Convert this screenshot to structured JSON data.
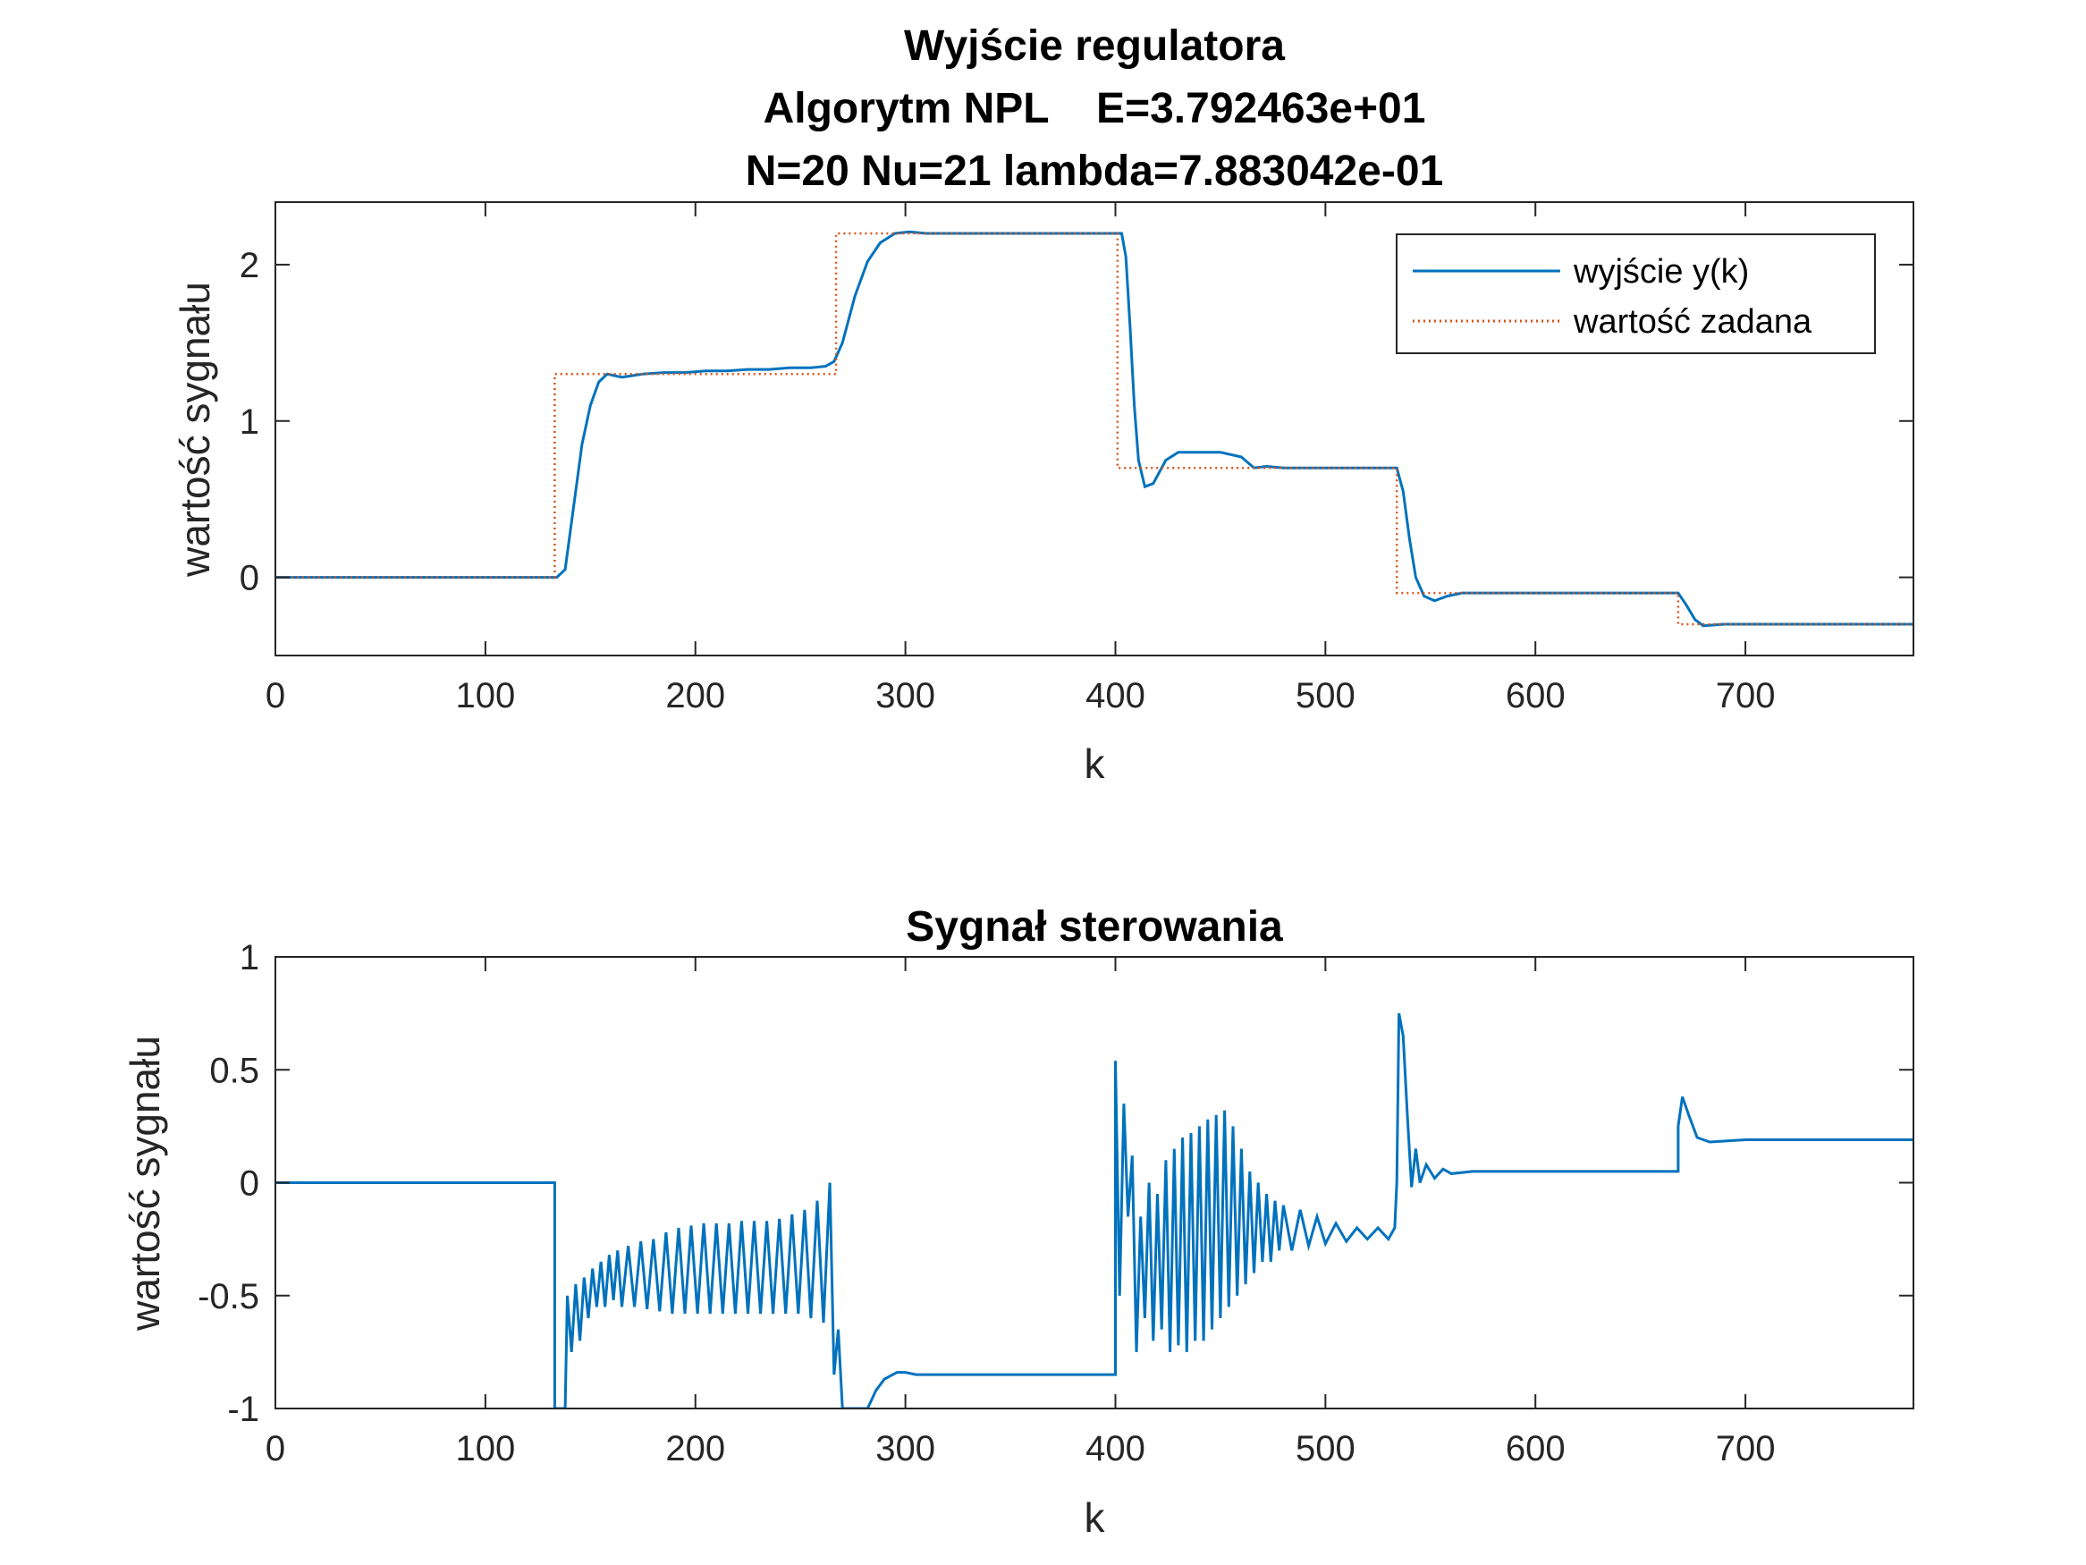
{
  "chart_data": [
    {
      "type": "line",
      "title": [
        "Wyjście regulatora",
        "Algorytm NPL    E=3.792463e+01",
        "N=20  Nu=21  lambda=7.883042e-01"
      ],
      "xlabel": "k",
      "ylabel": "wartość sygnału",
      "xlim": [
        0,
        780
      ],
      "ylim": [
        -0.5,
        2.4
      ],
      "xticks": [
        "0",
        "100",
        "200",
        "300",
        "400",
        "500",
        "600",
        "700"
      ],
      "yticks": [
        "0",
        "1",
        "2"
      ],
      "grid": false,
      "legend_position": "top-right",
      "series": [
        {
          "name": "wyjście y(k)",
          "color": "#0072BD",
          "style": "solid",
          "points": [
            [
              0,
              0
            ],
            [
              134,
              0
            ],
            [
              138,
              0.05
            ],
            [
              142,
              0.45
            ],
            [
              146,
              0.85
            ],
            [
              150,
              1.1
            ],
            [
              154,
              1.25
            ],
            [
              158,
              1.3
            ],
            [
              165,
              1.28
            ],
            [
              175,
              1.3
            ],
            [
              185,
              1.31
            ],
            [
              195,
              1.31
            ],
            [
              205,
              1.32
            ],
            [
              215,
              1.32
            ],
            [
              225,
              1.33
            ],
            [
              235,
              1.33
            ],
            [
              245,
              1.34
            ],
            [
              255,
              1.34
            ],
            [
              262,
              1.35
            ],
            [
              266,
              1.38
            ],
            [
              270,
              1.5
            ],
            [
              276,
              1.8
            ],
            [
              282,
              2.02
            ],
            [
              288,
              2.14
            ],
            [
              295,
              2.2
            ],
            [
              302,
              2.21
            ],
            [
              310,
              2.2
            ],
            [
              330,
              2.2
            ],
            [
              360,
              2.2
            ],
            [
              400,
              2.2
            ],
            [
              403,
              2.2
            ],
            [
              405,
              2.05
            ],
            [
              407,
              1.6
            ],
            [
              409,
              1.1
            ],
            [
              411,
              0.75
            ],
            [
              414,
              0.58
            ],
            [
              418,
              0.6
            ],
            [
              424,
              0.75
            ],
            [
              430,
              0.8
            ],
            [
              440,
              0.8
            ],
            [
              450,
              0.8
            ],
            [
              460,
              0.77
            ],
            [
              466,
              0.7
            ],
            [
              472,
              0.71
            ],
            [
              480,
              0.7
            ],
            [
              500,
              0.7
            ],
            [
              520,
              0.7
            ],
            [
              534,
              0.7
            ],
            [
              537,
              0.55
            ],
            [
              540,
              0.25
            ],
            [
              543,
              0.0
            ],
            [
              547,
              -0.12
            ],
            [
              552,
              -0.15
            ],
            [
              558,
              -0.12
            ],
            [
              565,
              -0.1
            ],
            [
              600,
              -0.1
            ],
            [
              650,
              -0.1
            ],
            [
              668,
              -0.1
            ],
            [
              672,
              -0.18
            ],
            [
              676,
              -0.27
            ],
            [
              680,
              -0.31
            ],
            [
              690,
              -0.3
            ],
            [
              720,
              -0.3
            ],
            [
              780,
              -0.3
            ]
          ]
        },
        {
          "name": "wartość zadana",
          "color": "#D95319",
          "style": "dotted",
          "points": [
            [
              0,
              0
            ],
            [
              133,
              0
            ],
            [
              133,
              1.3
            ],
            [
              267,
              1.3
            ],
            [
              267,
              2.2
            ],
            [
              401,
              2.2
            ],
            [
              401,
              0.7
            ],
            [
              534,
              0.7
            ],
            [
              534,
              -0.1
            ],
            [
              668,
              -0.1
            ],
            [
              668,
              -0.3
            ],
            [
              780,
              -0.3
            ]
          ]
        }
      ]
    },
    {
      "type": "line",
      "title": [
        "Sygnał sterowania"
      ],
      "xlabel": "k",
      "ylabel": "wartość sygnału",
      "xlim": [
        0,
        780
      ],
      "ylim": [
        -1,
        1
      ],
      "xticks": [
        "0",
        "100",
        "200",
        "300",
        "400",
        "500",
        "600",
        "700"
      ],
      "yticks": [
        "-1",
        "-0.5",
        "0",
        "0.5",
        "1"
      ],
      "grid": false,
      "series": [
        {
          "color": "#0072BD",
          "style": "solid",
          "points": [
            [
              0,
              0
            ],
            [
              133,
              0
            ],
            [
              133,
              -1
            ],
            [
              138,
              -1
            ],
            [
              139,
              -0.5
            ],
            [
              141,
              -0.75
            ],
            [
              143,
              -0.45
            ],
            [
              145,
              -0.7
            ],
            [
              147,
              -0.42
            ],
            [
              149,
              -0.6
            ],
            [
              151,
              -0.38
            ],
            [
              153,
              -0.55
            ],
            [
              155,
              -0.35
            ],
            [
              157,
              -0.55
            ],
            [
              159,
              -0.32
            ],
            [
              161,
              -0.52
            ],
            [
              163,
              -0.3
            ],
            [
              165,
              -0.55
            ],
            [
              168,
              -0.28
            ],
            [
              171,
              -0.55
            ],
            [
              174,
              -0.26
            ],
            [
              177,
              -0.56
            ],
            [
              180,
              -0.25
            ],
            [
              183,
              -0.57
            ],
            [
              186,
              -0.22
            ],
            [
              189,
              -0.58
            ],
            [
              192,
              -0.2
            ],
            [
              195,
              -0.58
            ],
            [
              198,
              -0.19
            ],
            [
              201,
              -0.58
            ],
            [
              204,
              -0.18
            ],
            [
              207,
              -0.58
            ],
            [
              210,
              -0.18
            ],
            [
              213,
              -0.58
            ],
            [
              216,
              -0.18
            ],
            [
              219,
              -0.58
            ],
            [
              222,
              -0.17
            ],
            [
              225,
              -0.58
            ],
            [
              228,
              -0.17
            ],
            [
              231,
              -0.58
            ],
            [
              234,
              -0.17
            ],
            [
              237,
              -0.58
            ],
            [
              240,
              -0.16
            ],
            [
              243,
              -0.58
            ],
            [
              246,
              -0.14
            ],
            [
              249,
              -0.58
            ],
            [
              252,
              -0.12
            ],
            [
              255,
              -0.6
            ],
            [
              258,
              -0.08
            ],
            [
              261,
              -0.62
            ],
            [
              264,
              0.0
            ],
            [
              266,
              -0.85
            ],
            [
              268,
              -0.65
            ],
            [
              270,
              -1
            ],
            [
              282,
              -1
            ],
            [
              286,
              -0.92
            ],
            [
              290,
              -0.87
            ],
            [
              296,
              -0.84
            ],
            [
              300,
              -0.84
            ],
            [
              305,
              -0.85
            ],
            [
              330,
              -0.85
            ],
            [
              400,
              -0.85
            ],
            [
              400,
              0.54
            ],
            [
              402,
              -0.5
            ],
            [
              404,
              0.35
            ],
            [
              406,
              -0.15
            ],
            [
              408,
              0.12
            ],
            [
              410,
              -0.75
            ],
            [
              412,
              -0.15
            ],
            [
              414,
              -0.6
            ],
            [
              416,
              -0.0
            ],
            [
              418,
              -0.7
            ],
            [
              420,
              -0.05
            ],
            [
              422,
              -0.65
            ],
            [
              424,
              0.1
            ],
            [
              426,
              -0.75
            ],
            [
              428,
              0.15
            ],
            [
              430,
              -0.72
            ],
            [
              432,
              0.2
            ],
            [
              434,
              -0.75
            ],
            [
              436,
              0.22
            ],
            [
              438,
              -0.7
            ],
            [
              440,
              0.25
            ],
            [
              442,
              -0.7
            ],
            [
              444,
              0.28
            ],
            [
              446,
              -0.65
            ],
            [
              448,
              0.3
            ],
            [
              450,
              -0.6
            ],
            [
              452,
              0.32
            ],
            [
              454,
              -0.55
            ],
            [
              456,
              0.25
            ],
            [
              458,
              -0.5
            ],
            [
              460,
              0.15
            ],
            [
              462,
              -0.45
            ],
            [
              464,
              0.05
            ],
            [
              466,
              -0.4
            ],
            [
              468,
              0.0
            ],
            [
              470,
              -0.35
            ],
            [
              472,
              -0.05
            ],
            [
              474,
              -0.35
            ],
            [
              476,
              -0.08
            ],
            [
              478,
              -0.3
            ],
            [
              480,
              -0.1
            ],
            [
              484,
              -0.3
            ],
            [
              488,
              -0.12
            ],
            [
              492,
              -0.28
            ],
            [
              496,
              -0.15
            ],
            [
              500,
              -0.27
            ],
            [
              505,
              -0.18
            ],
            [
              510,
              -0.26
            ],
            [
              515,
              -0.2
            ],
            [
              520,
              -0.25
            ],
            [
              525,
              -0.2
            ],
            [
              530,
              -0.25
            ],
            [
              533,
              -0.2
            ],
            [
              534,
              0.0
            ],
            [
              535,
              0.75
            ],
            [
              537,
              0.65
            ],
            [
              539,
              0.3
            ],
            [
              541,
              -0.02
            ],
            [
              543,
              0.15
            ],
            [
              545,
              0.0
            ],
            [
              548,
              0.08
            ],
            [
              552,
              0.02
            ],
            [
              556,
              0.06
            ],
            [
              560,
              0.04
            ],
            [
              570,
              0.05
            ],
            [
              600,
              0.05
            ],
            [
              668,
              0.05
            ],
            [
              668,
              0.25
            ],
            [
              670,
              0.38
            ],
            [
              673,
              0.3
            ],
            [
              677,
              0.2
            ],
            [
              683,
              0.18
            ],
            [
              700,
              0.19
            ],
            [
              780,
              0.19
            ]
          ]
        }
      ]
    }
  ]
}
